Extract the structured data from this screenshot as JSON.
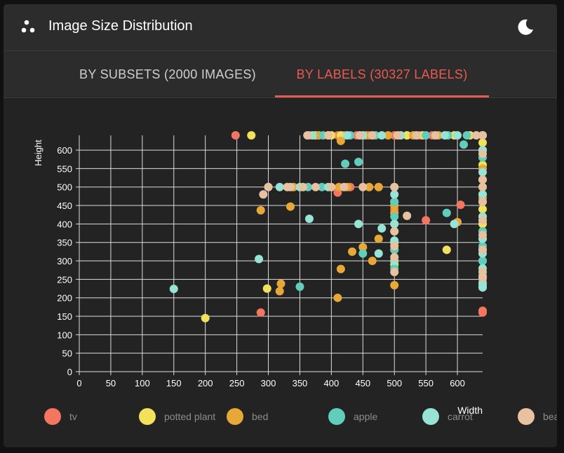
{
  "header": {
    "title": "Image Size Distribution",
    "logo_icon": "scatter-dots-icon",
    "theme_icon": "moon-icon"
  },
  "tabs": [
    {
      "label": "BY SUBSETS (2000 IMAGES)",
      "active": false
    },
    {
      "label": "BY LABELS (30327 LABELS)",
      "active": true
    }
  ],
  "colors": {
    "accent": "#e85a52",
    "tab_text": "#cfcfcf"
  },
  "chart_data": {
    "type": "scatter",
    "xlabel": "Width",
    "ylabel": "Height",
    "xlim": [
      0,
      640
    ],
    "ylim": [
      0,
      640
    ],
    "x_ticks": [
      0,
      50,
      100,
      150,
      200,
      250,
      300,
      350,
      400,
      450,
      500,
      550,
      600
    ],
    "y_ticks": [
      0,
      50,
      100,
      150,
      200,
      250,
      300,
      350,
      400,
      450,
      500,
      550,
      600
    ],
    "grid": true,
    "legend_position": "bottom",
    "series": [
      {
        "name": "tv",
        "color": "#f47560",
        "points": [
          [
            248,
            640
          ],
          [
            365,
            640
          ],
          [
            410,
            640
          ],
          [
            420,
            640
          ],
          [
            440,
            640
          ],
          [
            460,
            640
          ],
          [
            500,
            640
          ],
          [
            520,
            640
          ],
          [
            540,
            640
          ],
          [
            560,
            640
          ],
          [
            640,
            640
          ],
          [
            475,
            500
          ],
          [
            430,
            500
          ],
          [
            410,
            485
          ],
          [
            500,
            460
          ],
          [
            500,
            440
          ],
          [
            550,
            410
          ],
          [
            605,
            452
          ],
          [
            640,
            165
          ],
          [
            640,
            160
          ],
          [
            288,
            160
          ],
          [
            500,
            300
          ],
          [
            640,
            250
          ]
        ]
      },
      {
        "name": "potted plant",
        "color": "#f1e15b",
        "points": [
          [
            273,
            640
          ],
          [
            375,
            640
          ],
          [
            400,
            640
          ],
          [
            415,
            640
          ],
          [
            520,
            640
          ],
          [
            545,
            640
          ],
          [
            595,
            640
          ],
          [
            620,
            640
          ],
          [
            640,
            640
          ],
          [
            640,
            620
          ],
          [
            640,
            600
          ],
          [
            640,
            560
          ],
          [
            640,
            520
          ],
          [
            640,
            480
          ],
          [
            640,
            440
          ],
          [
            640,
            400
          ],
          [
            640,
            360
          ],
          [
            640,
            330
          ],
          [
            640,
            300
          ],
          [
            500,
            330
          ],
          [
            500,
            290
          ],
          [
            500,
            350
          ],
          [
            583,
            330
          ],
          [
            298,
            225
          ],
          [
            200,
            145
          ]
        ]
      },
      {
        "name": "bed",
        "color": "#e8a838",
        "points": [
          [
            380,
            640
          ],
          [
            395,
            640
          ],
          [
            455,
            640
          ],
          [
            490,
            640
          ],
          [
            530,
            640
          ],
          [
            570,
            640
          ],
          [
            640,
            640
          ],
          [
            640,
            550
          ],
          [
            640,
            470
          ],
          [
            640,
            380
          ],
          [
            640,
            300
          ],
          [
            640,
            230
          ],
          [
            415,
            625
          ],
          [
            412,
            500
          ],
          [
            425,
            500
          ],
          [
            460,
            500
          ],
          [
            475,
            500
          ],
          [
            500,
            500
          ],
          [
            500,
            450
          ],
          [
            500,
            430
          ],
          [
            500,
            400
          ],
          [
            475,
            360
          ],
          [
            450,
            337
          ],
          [
            433,
            325
          ],
          [
            415,
            278
          ],
          [
            410,
            200
          ],
          [
            500,
            234
          ],
          [
            288,
            437
          ],
          [
            335,
            447
          ],
          [
            318,
            218
          ],
          [
            320,
            238
          ],
          [
            340,
            500
          ],
          [
            600,
            405
          ],
          [
            465,
            300
          ],
          [
            640,
            600
          ]
        ]
      },
      {
        "name": "apple",
        "color": "#61cdbb",
        "points": [
          [
            387,
            640
          ],
          [
            430,
            640
          ],
          [
            470,
            640
          ],
          [
            510,
            640
          ],
          [
            550,
            640
          ],
          [
            585,
            640
          ],
          [
            615,
            640
          ],
          [
            640,
            640
          ],
          [
            610,
            615
          ],
          [
            640,
            580
          ],
          [
            640,
            500
          ],
          [
            640,
            460
          ],
          [
            640,
            420
          ],
          [
            640,
            380
          ],
          [
            640,
            340
          ],
          [
            640,
            300
          ],
          [
            640,
            260
          ],
          [
            640,
            235
          ],
          [
            443,
            568
          ],
          [
            422,
            563
          ],
          [
            500,
            460
          ],
          [
            500,
            420
          ],
          [
            500,
            380
          ],
          [
            500,
            330
          ],
          [
            500,
            280
          ],
          [
            583,
            430
          ],
          [
            450,
            320
          ],
          [
            350,
            230
          ],
          [
            363,
            500
          ],
          [
            385,
            500
          ]
        ]
      },
      {
        "name": "carrot",
        "color": "#97e3d5",
        "points": [
          [
            370,
            640
          ],
          [
            425,
            640
          ],
          [
            450,
            640
          ],
          [
            480,
            640
          ],
          [
            510,
            640
          ],
          [
            580,
            640
          ],
          [
            600,
            640
          ],
          [
            640,
            640
          ],
          [
            640,
            600
          ],
          [
            640,
            540
          ],
          [
            640,
            480
          ],
          [
            640,
            420
          ],
          [
            640,
            360
          ],
          [
            640,
            320
          ],
          [
            640,
            280
          ],
          [
            640,
            240
          ],
          [
            640,
            228
          ],
          [
            150,
            224
          ],
          [
            285,
            305
          ],
          [
            318,
            500
          ],
          [
            350,
            500
          ],
          [
            395,
            500
          ],
          [
            443,
            400
          ],
          [
            365,
            414
          ],
          [
            480,
            388
          ],
          [
            475,
            320
          ],
          [
            500,
            480
          ],
          [
            500,
            400
          ],
          [
            500,
            355
          ],
          [
            500,
            300
          ],
          [
            595,
            400
          ],
          [
            300,
            500
          ]
        ]
      },
      {
        "name": "bear",
        "color": "#e8c1a0",
        "points": [
          [
            362,
            640
          ],
          [
            395,
            640
          ],
          [
            445,
            640
          ],
          [
            465,
            640
          ],
          [
            505,
            640
          ],
          [
            535,
            640
          ],
          [
            565,
            640
          ],
          [
            630,
            640
          ],
          [
            640,
            640
          ],
          [
            640,
            590
          ],
          [
            640,
            520
          ],
          [
            640,
            500
          ],
          [
            640,
            460
          ],
          [
            640,
            410
          ],
          [
            640,
            370
          ],
          [
            640,
            330
          ],
          [
            640,
            270
          ],
          [
            640,
            255
          ],
          [
            292,
            480
          ],
          [
            330,
            500
          ],
          [
            335,
            500
          ],
          [
            355,
            500
          ],
          [
            375,
            500
          ],
          [
            400,
            500
          ],
          [
            420,
            500
          ],
          [
            450,
            500
          ],
          [
            500,
            500
          ],
          [
            500,
            380
          ],
          [
            500,
            340
          ],
          [
            500,
            310
          ],
          [
            500,
            270
          ],
          [
            520,
            422
          ],
          [
            300,
            500
          ]
        ]
      }
    ]
  }
}
